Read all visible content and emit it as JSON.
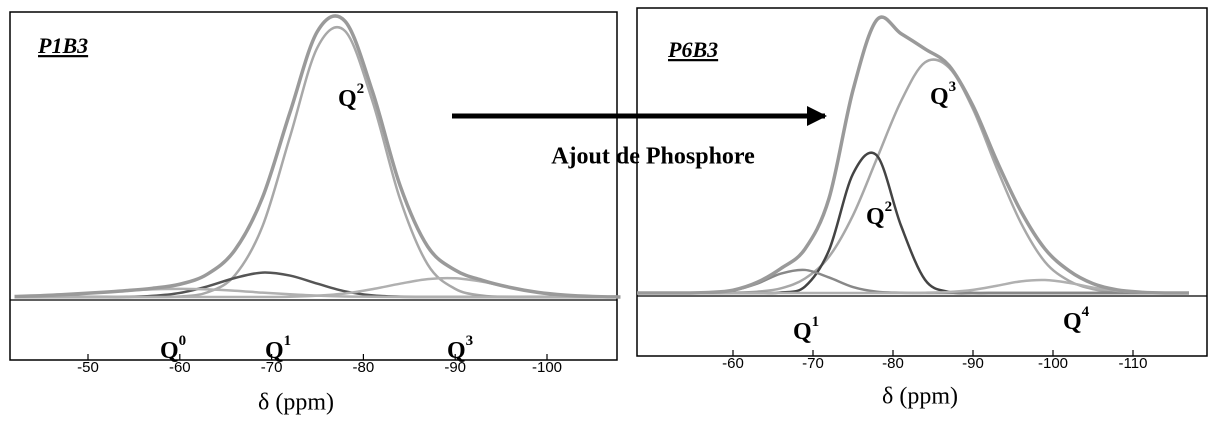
{
  "chart_data": [
    {
      "type": "line",
      "panel_label": "P1B3",
      "x_label": "δ (ppm)",
      "xlim": [
        -42,
        -108
      ],
      "ylim": [
        0,
        1.05
      ],
      "xticks": [
        -50,
        -60,
        -70,
        -80,
        -90,
        -100
      ],
      "x": [
        -42,
        -45,
        -48,
        -51,
        -54,
        -57,
        -60,
        -63,
        -66,
        -69,
        -72,
        -75,
        -78,
        -81,
        -84,
        -87,
        -90,
        -93,
        -96,
        -99,
        -102,
        -105,
        -108
      ],
      "series": [
        {
          "color": "#9a9a9a",
          "values": [
            0.002,
            0.005,
            0.01,
            0.016,
            0.023,
            0.032,
            0.047,
            0.084,
            0.173,
            0.366,
            0.68,
            0.979,
            1.016,
            0.756,
            0.41,
            0.186,
            0.099,
            0.061,
            0.035,
            0.017,
            0.007,
            0.002,
            0
          ]
        },
        {
          "color": "#a8a8a8",
          "values": [
            0,
            0,
            0,
            0,
            0,
            0,
            0.002,
            0.017,
            0.08,
            0.26,
            0.59,
            0.92,
            0.98,
            0.72,
            0.36,
            0.12,
            0.03,
            0.005,
            0,
            0,
            0,
            0,
            0
          ]
        },
        {
          "color": "#555555",
          "values": [
            0,
            0,
            0,
            0,
            0,
            0.004,
            0.015,
            0.039,
            0.07,
            0.09,
            0.079,
            0.049,
            0.021,
            0.006,
            0.001,
            0,
            0,
            0,
            0,
            0,
            0,
            0,
            0
          ]
        },
        {
          "color": "#b0b0b0",
          "values": [
            0,
            0,
            0,
            0,
            0,
            0,
            0,
            0,
            0,
            0,
            0.001,
            0.005,
            0.013,
            0.029,
            0.049,
            0.066,
            0.069,
            0.056,
            0.035,
            0.017,
            0.007,
            0.002,
            0
          ]
        },
        {
          "color": "#b0b0b0",
          "values": [
            0.002,
            0.005,
            0.01,
            0.016,
            0.023,
            0.028,
            0.03,
            0.028,
            0.023,
            0.016,
            0.01,
            0.005,
            0.002,
            0.001,
            0,
            0,
            0,
            0,
            0,
            0,
            0,
            0,
            0
          ]
        }
      ],
      "annotations": [
        {
          "text": "Q",
          "sup": "2",
          "color": "#a0a0a0"
        },
        {
          "text": "Q",
          "sup": "0",
          "color": "#a0a0a0"
        },
        {
          "text": "Q",
          "sup": "1",
          "color": "#222222"
        },
        {
          "text": "Q",
          "sup": "3",
          "color": "#b8b8b8"
        }
      ]
    },
    {
      "type": "line",
      "panel_label": "P6B3",
      "x_label": "δ (ppm)",
      "xlim": [
        -48,
        -119
      ],
      "ylim": [
        0,
        1.1
      ],
      "xticks": [
        -60,
        -70,
        -80,
        -90,
        -100,
        -110
      ],
      "x": [
        -48,
        -51,
        -54,
        -57,
        -60,
        -63,
        -66,
        -69,
        -72,
        -75,
        -78,
        -81,
        -84,
        -87,
        -90,
        -93,
        -96,
        -99,
        -102,
        -105,
        -108,
        -111,
        -114,
        -117
      ],
      "series": [
        {
          "color": "#9a9a9a",
          "values": [
            0,
            0,
            0,
            0.002,
            0.011,
            0.041,
            0.095,
            0.17,
            0.365,
            0.783,
            1.055,
            1.001,
            0.942,
            0.878,
            0.722,
            0.508,
            0.315,
            0.17,
            0.086,
            0.036,
            0.012,
            0.003,
            0,
            0
          ]
        },
        {
          "color": "#a8a8a8",
          "values": [
            0,
            0,
            0,
            0,
            0.001,
            0.005,
            0.018,
            0.056,
            0.14,
            0.3,
            0.52,
            0.74,
            0.89,
            0.87,
            0.71,
            0.48,
            0.27,
            0.12,
            0.047,
            0.015,
            0.004,
            0.001,
            0,
            0
          ]
        },
        {
          "color": "#444444",
          "values": [
            0,
            0,
            0,
            0,
            0,
            0,
            0.002,
            0.025,
            0.165,
            0.46,
            0.53,
            0.26,
            0.051,
            0.004,
            0,
            0,
            0,
            0,
            0,
            0,
            0,
            0,
            0,
            0
          ]
        },
        {
          "color": "#888888",
          "values": [
            0,
            0,
            0,
            0.002,
            0.01,
            0.036,
            0.075,
            0.089,
            0.06,
            0.023,
            0.005,
            0.001,
            0,
            0,
            0,
            0,
            0,
            0,
            0,
            0,
            0,
            0,
            0,
            0
          ]
        },
        {
          "color": "#b0b0b0",
          "values": [
            0,
            0,
            0,
            0,
            0,
            0,
            0,
            0,
            0,
            0,
            0,
            0,
            0.001,
            0.004,
            0.012,
            0.028,
            0.045,
            0.05,
            0.039,
            0.021,
            0.008,
            0.002,
            0,
            0
          ]
        }
      ],
      "annotations": [
        {
          "text": "Q",
          "sup": "3",
          "color": "#111111"
        },
        {
          "text": "Q",
          "sup": "2",
          "color": "#111111"
        },
        {
          "text": "Q",
          "sup": "1",
          "color": "#111111"
        },
        {
          "text": "Q",
          "sup": "4",
          "color": "#111111"
        }
      ]
    }
  ],
  "arrow_label": "Ajout de Phosphore"
}
